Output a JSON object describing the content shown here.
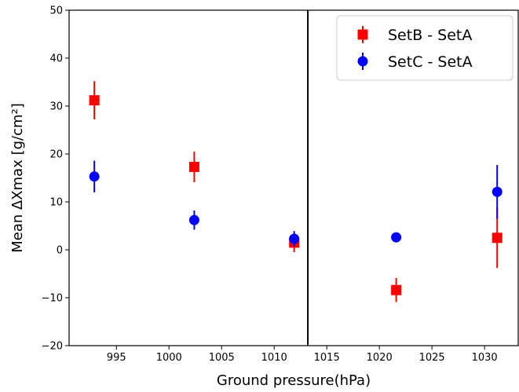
{
  "chart_data": {
    "type": "scatter",
    "xlabel": "Ground pressure(hPa)",
    "ylabel": "Mean ΔXmax  [g/cm²]",
    "xlim": [
      990.5,
      1033.2
    ],
    "ylim": [
      -20,
      50
    ],
    "xticks": [
      995,
      1000,
      1005,
      1010,
      1015,
      1020,
      1025,
      1030
    ],
    "yticks": [
      -20,
      -10,
      0,
      10,
      20,
      30,
      40,
      50
    ],
    "reference_line_x": 1013.2,
    "legend_position": "top-right",
    "grid": false,
    "series": [
      {
        "name": "SetB - SetA",
        "marker": "square",
        "color": "#ff0000",
        "points": [
          {
            "x": 992.9,
            "y": 31.2,
            "err": 4.0
          },
          {
            "x": 1002.4,
            "y": 17.3,
            "err": 3.2
          },
          {
            "x": 1011.9,
            "y": 1.5,
            "err": 2.0
          },
          {
            "x": 1021.6,
            "y": -8.4,
            "err": 2.5
          },
          {
            "x": 1031.2,
            "y": 2.5,
            "err": 6.3
          }
        ]
      },
      {
        "name": "SetC - SetA",
        "marker": "circle",
        "color": "#0000ff",
        "points": [
          {
            "x": 992.9,
            "y": 15.3,
            "err": 3.3
          },
          {
            "x": 1002.4,
            "y": 6.2,
            "err": 2.0
          },
          {
            "x": 1011.9,
            "y": 2.3,
            "err": 1.6
          },
          {
            "x": 1021.6,
            "y": 2.6,
            "err": 1.0
          },
          {
            "x": 1031.2,
            "y": 12.1,
            "err": 5.6
          }
        ]
      }
    ]
  }
}
